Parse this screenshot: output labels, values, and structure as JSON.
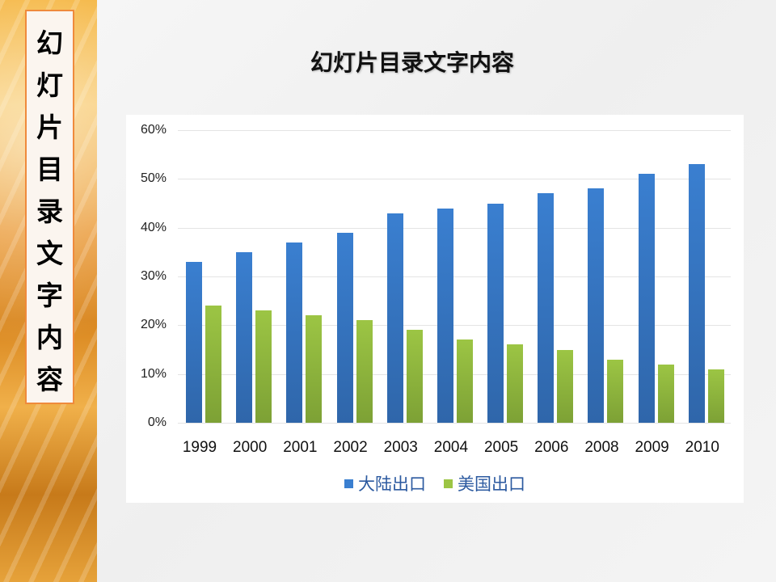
{
  "slide": {
    "title": "幻灯片目录文字内容",
    "vertical_title_chars": [
      "幻",
      "灯",
      "片",
      "目",
      "录",
      "文",
      "字",
      "内",
      "容"
    ]
  },
  "colors": {
    "series_blue": "#3a7fd0",
    "series_green": "#9cc544",
    "side_box_border": "#ef8a3c"
  },
  "chart_data": {
    "type": "bar",
    "title": "",
    "xlabel": "",
    "ylabel": "",
    "categories": [
      "1999",
      "2000",
      "2001",
      "2002",
      "2003",
      "2004",
      "2005",
      "2006",
      "2008",
      "2009",
      "2010"
    ],
    "series": [
      {
        "name": "大陆出口",
        "color": "#3a7fd0",
        "values": [
          33,
          35,
          37,
          39,
          43,
          44,
          45,
          47,
          48,
          51,
          53
        ]
      },
      {
        "name": "美国出口",
        "color": "#9cc544",
        "values": [
          24,
          23,
          22,
          21,
          19,
          17,
          16,
          15,
          13,
          12,
          11
        ]
      }
    ],
    "ylim": [
      0,
      60
    ],
    "yticks": [
      "0%",
      "10%",
      "20%",
      "30%",
      "40%",
      "50%",
      "60%"
    ],
    "value_format": "percent",
    "grid": true,
    "legend_position": "bottom"
  }
}
